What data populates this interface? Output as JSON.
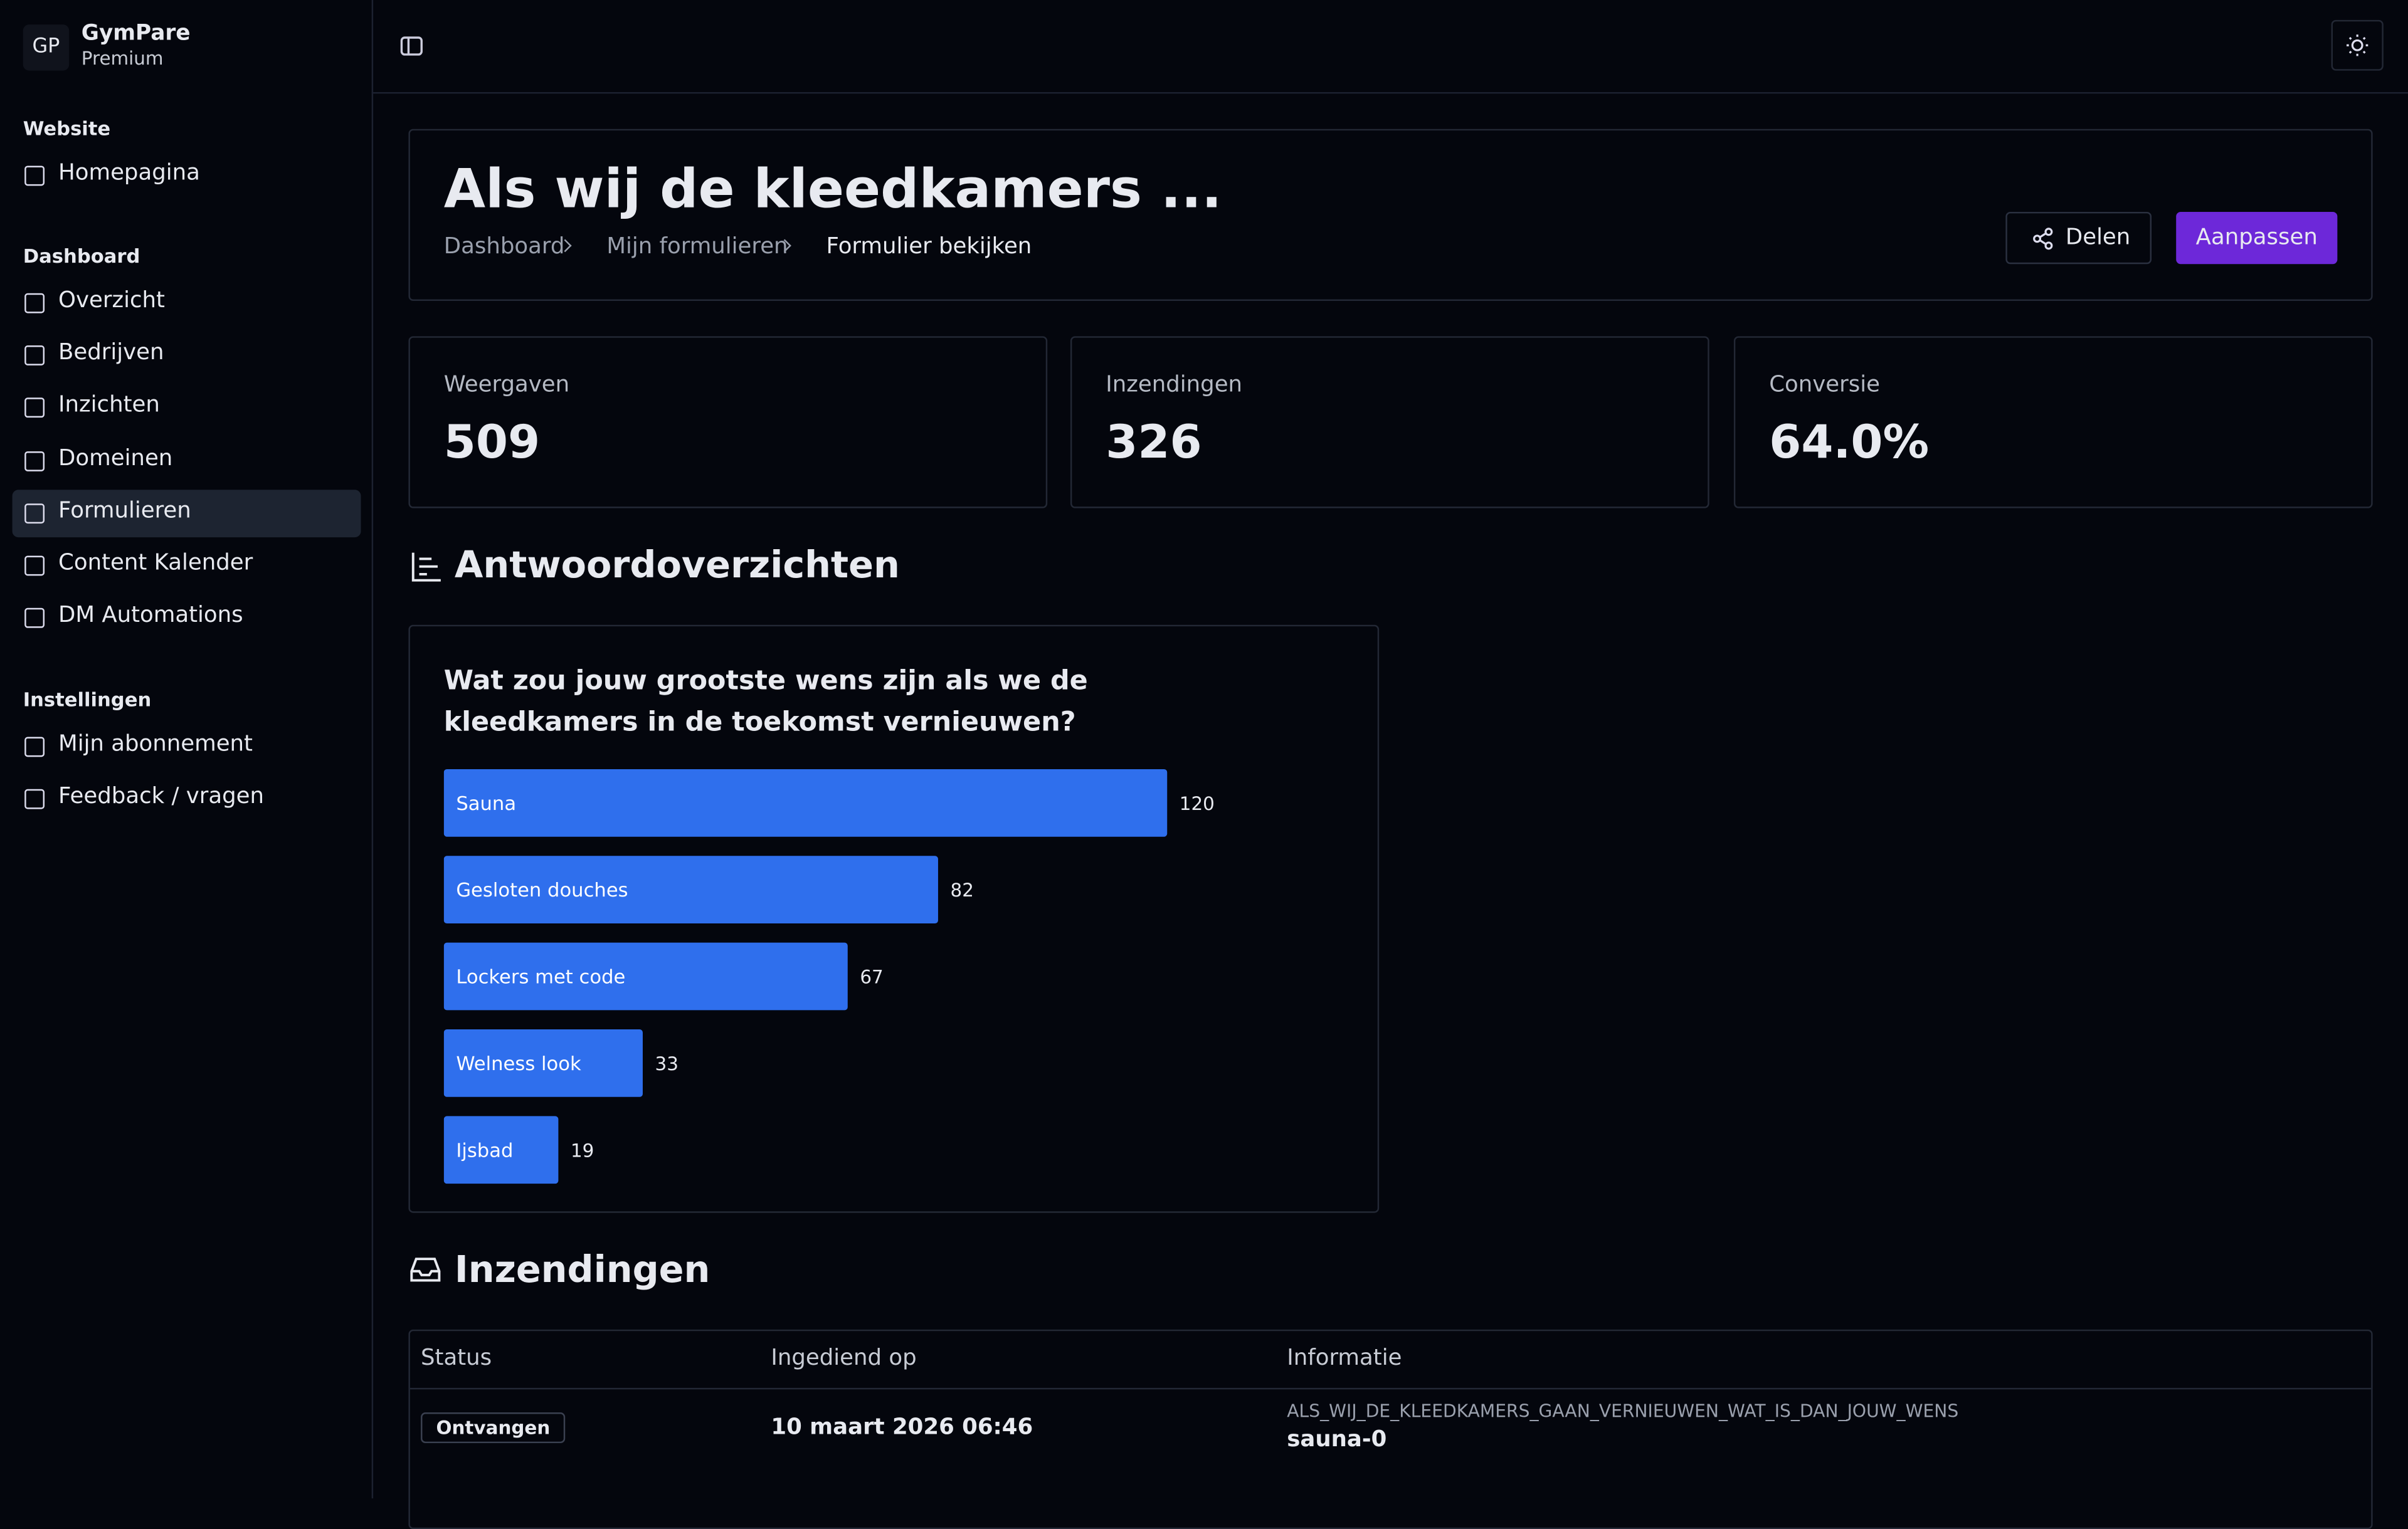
{
  "sidebar": {
    "brand": {
      "initials": "GP",
      "name": "GymPare",
      "plan": "Premium"
    },
    "groups": [
      {
        "label": "Website",
        "items": [
          "Homepagina"
        ]
      },
      {
        "label": "Dashboard",
        "items": [
          "Overzicht",
          "Bedrijven",
          "Inzichten",
          "Domeinen",
          "Formulieren",
          "Content Kalender",
          "DM Automations"
        ]
      },
      {
        "label": "Instellingen",
        "items": [
          "Mijn abonnement",
          "Feedback / vragen"
        ]
      }
    ]
  },
  "header": {
    "title": "Als wij de kleedkamers ...",
    "breadcrumb": [
      "Dashboard",
      "Mijn formulieren",
      "Formulier bekijken"
    ],
    "buttons": [
      "Delen",
      "Aanpassen"
    ]
  },
  "stats": [
    {
      "label": "Weergaven",
      "value": 509
    },
    {
      "label": "Inzendingen",
      "value": 326
    },
    {
      "label": "Conversie",
      "value": "64.0%"
    }
  ],
  "answers": {
    "title": "Antwoordoverzichten",
    "question": "Wat zou jouw grootste wens zijn als we de kleedkamers in de toekomst vernieuwen?",
    "chart": {
      "type": "bar",
      "categories": [
        "Sauna",
        "Gesloten douches",
        "Lockers met code",
        "Welness look",
        "Ijsbad"
      ],
      "values": [
        120,
        82,
        67,
        33,
        19
      ],
      "color": "#2f6fed"
    }
  },
  "submissions": {
    "title": "Inzendingen",
    "columns": [
      "Status",
      "Ingediend op",
      "Informatie"
    ],
    "rows": [
      {
        "status": "Ontvangen",
        "date": "10 maart 2026 06:46",
        "field": "ALS_WIJ_DE_KLEEDKAMERS_GAAN_VERNIEUWEN_WAT_IS_DAN_JOUW_WENS",
        "answer": "sauna-0"
      }
    ]
  }
}
